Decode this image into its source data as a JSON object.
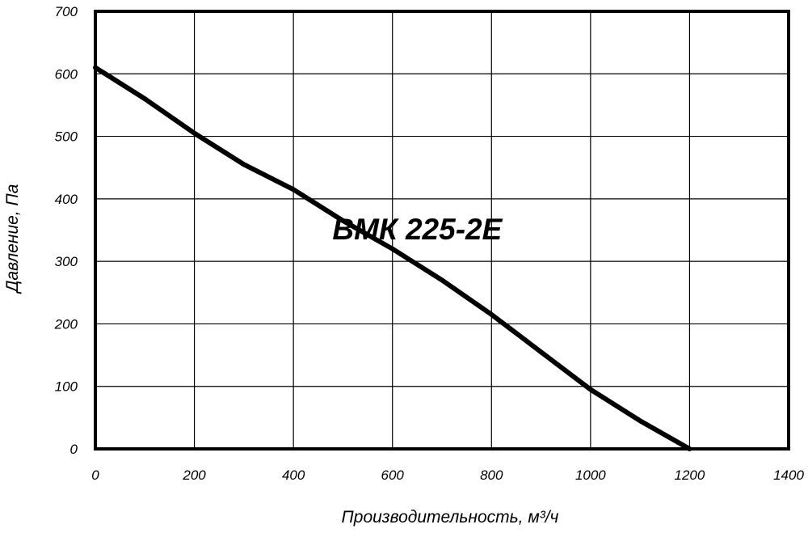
{
  "chart_data": {
    "type": "line",
    "xlabel": "Производительность, м³/ч",
    "ylabel": "Давление, Па",
    "xlim": [
      0,
      1400
    ],
    "ylim": [
      0,
      700
    ],
    "x_ticks": [
      0,
      200,
      400,
      600,
      800,
      1000,
      1200,
      1400
    ],
    "y_ticks": [
      0,
      100,
      200,
      300,
      400,
      500,
      600,
      700
    ],
    "grid": true,
    "series": [
      {
        "name": "ВМК 225-2Е",
        "x": [
          0,
          100,
          200,
          300,
          400,
          500,
          600,
          700,
          800,
          900,
          1000,
          1100,
          1200
        ],
        "y": [
          610,
          560,
          505,
          455,
          415,
          365,
          320,
          270,
          215,
          155,
          95,
          45,
          0
        ]
      }
    ]
  }
}
